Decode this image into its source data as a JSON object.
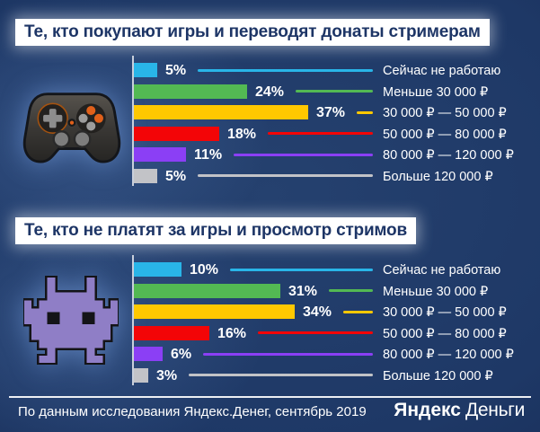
{
  "chart_data": [
    {
      "type": "bar",
      "orientation": "horizontal",
      "unit": "%",
      "title": "Те, кто покупают игры и переводят донаты стримерам",
      "icon": "gamepad-icon",
      "categories": [
        "Сейчас не работаю",
        "Меньше 30 000 ₽",
        "30 000 ₽ — 50 000 ₽",
        "50 000 ₽ — 80 000 ₽",
        "80 000 ₽ — 120 000 ₽",
        "Больше 120 000 ₽"
      ],
      "values": [
        5,
        24,
        37,
        18,
        11,
        5
      ],
      "value_labels": [
        "5%",
        "24%",
        "37%",
        "18%",
        "11%",
        "5%"
      ],
      "bar_colors": [
        "#29b5e8",
        "#53b953",
        "#ffc800",
        "#f30507",
        "#8b3ff5",
        "#c2c3c7"
      ],
      "xlim": [
        0,
        40
      ],
      "grid": false,
      "legend": "none"
    },
    {
      "type": "bar",
      "orientation": "horizontal",
      "unit": "%",
      "title": "Те, кто не платят за игры и просмотр стримов",
      "icon": "space-invader-icon",
      "categories": [
        "Сейчас не работаю",
        "Меньше 30 000 ₽",
        "30 000 ₽ — 50 000 ₽",
        "50 000 ₽ — 80 000 ₽",
        "80 000 ₽ — 120 000 ₽",
        "Больше 120 000 ₽"
      ],
      "values": [
        10,
        31,
        34,
        16,
        6,
        3
      ],
      "value_labels": [
        "10%",
        "31%",
        "34%",
        "16%",
        "6%",
        "3%"
      ],
      "bar_colors": [
        "#29b5e8",
        "#53b953",
        "#ffc800",
        "#f30507",
        "#8b3ff5",
        "#c2c3c7"
      ],
      "xlim": [
        0,
        40
      ],
      "grid": false,
      "legend": "none"
    }
  ],
  "footer": {
    "source": "По данным исследования Яндекс.Денег, сентябрь 2019",
    "logo": {
      "bold": "Яндекс",
      "light": "Деньги"
    }
  },
  "style": {
    "background": "#1e3866",
    "axis_color": "#c9cfdb",
    "title_text_color": "#1d3566",
    "label_color": "#ffffff"
  }
}
